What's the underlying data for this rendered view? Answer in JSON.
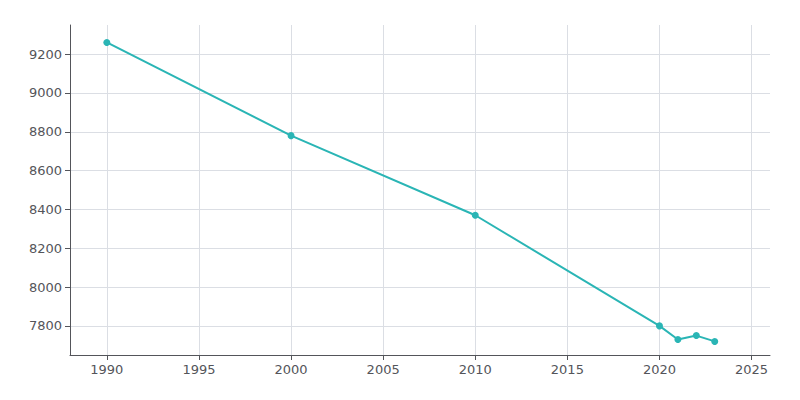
{
  "chart_data": {
    "type": "line",
    "x": [
      1990,
      2000,
      2010,
      2020,
      2021,
      2022,
      2023
    ],
    "values": [
      9260,
      8780,
      8370,
      7800,
      7730,
      7750,
      7720
    ],
    "color": "#2ab5b5",
    "marker": "circle",
    "xlim": [
      1988,
      2026
    ],
    "ylim": [
      7650,
      9350
    ],
    "xticks": [
      1990,
      1995,
      2000,
      2005,
      2010,
      2015,
      2020,
      2025
    ],
    "yticks": [
      7800,
      8000,
      8200,
      8400,
      8600,
      8800,
      9000,
      9200
    ],
    "grid": true
  }
}
